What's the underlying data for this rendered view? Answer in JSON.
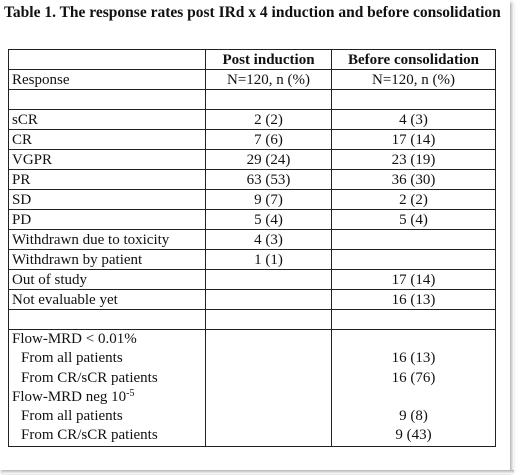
{
  "caption": "Table 1. The response rates post IRd x 4 induction and before consolidation",
  "headers": {
    "col2": "Post induction",
    "col3": "Before consolidation"
  },
  "subheader": {
    "label": "Response",
    "col2": "N=120, n (%)",
    "col3": "N=120, n (%)"
  },
  "rows": [
    {
      "label": "sCR",
      "post": "2 (2)",
      "before": "4 (3)"
    },
    {
      "label": "CR",
      "post": "7 (6)",
      "before": "17 (14)"
    },
    {
      "label": "VGPR",
      "post": "29 (24)",
      "before": "23 (19)"
    },
    {
      "label": "PR",
      "post": "63 (53)",
      "before": "36 (30)"
    },
    {
      "label": "SD",
      "post": "9 (7)",
      "before": "2 (2)"
    },
    {
      "label": "PD",
      "post": "5 (4)",
      "before": "5 (4)"
    },
    {
      "label": "Withdrawn due to toxicity",
      "post": "4 (3)",
      "before": ""
    },
    {
      "label": "Withdrawn by patient",
      "post": "1 (1)",
      "before": ""
    },
    {
      "label": "Out of study",
      "post": "",
      "before": "17 (14)"
    },
    {
      "label": "Not evaluable yet",
      "post": "",
      "before": "16 (13)"
    }
  ],
  "mrd": {
    "flow_001_label": "Flow-MRD < 0.01%",
    "flow_001_all_label": "From all patients",
    "flow_001_all_value": "16 (13)",
    "flow_001_cr_label": "From CR/sCR patients",
    "flow_001_cr_value": "16 (76)",
    "flow_neg_label": "Flow-MRD neg 10",
    "flow_neg_exp": "-5",
    "flow_neg_all_label": "From all patients",
    "flow_neg_all_value": "9 (8)",
    "flow_neg_cr_label": "From CR/sCR patients",
    "flow_neg_cr_value": "9 (43)"
  }
}
